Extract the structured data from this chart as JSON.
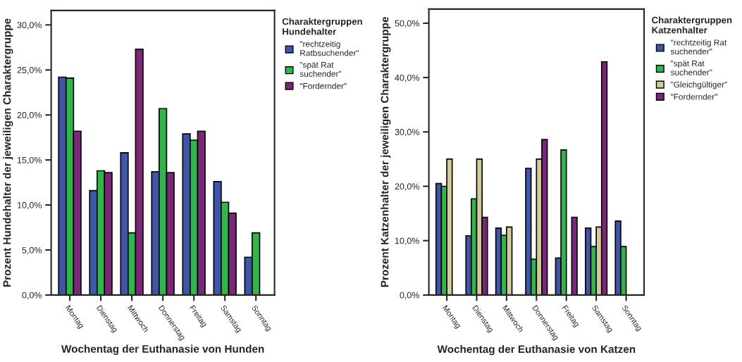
{
  "chart_data": [
    {
      "type": "bar",
      "xlabel": "Wochentag der Euthanasie von Hunden",
      "ylabel": "Prozent Hundehalter der jeweiligen Charaktergruppe",
      "legend_title": "Charaktergruppen\nHundehalter",
      "legend": "right",
      "grid": false,
      "categories": [
        "Montag",
        "Dienstag",
        "Mittwoch",
        "Donnerstag",
        "Freitag",
        "Samstag",
        "Sonntag"
      ],
      "ylim": [
        0,
        31.6
      ],
      "yticks": [
        {
          "value": 0,
          "label": "0,0%"
        },
        {
          "value": 5,
          "label": "5,0%"
        },
        {
          "value": 10,
          "label": "10,0%"
        },
        {
          "value": 15,
          "label": "15,0%"
        },
        {
          "value": 20,
          "label": "20,0%"
        },
        {
          "value": 25,
          "label": "25,0%"
        },
        {
          "value": 30,
          "label": "30,0%"
        }
      ],
      "series": [
        {
          "name": "\"rechtzeitig\nRatbsuchender\"",
          "color": "#3f56a8",
          "values": [
            24.2,
            11.6,
            15.8,
            13.7,
            17.9,
            12.6,
            4.2
          ]
        },
        {
          "name": "\"spät Rat\nsuchender\"",
          "color": "#2fb84a",
          "values": [
            24.1,
            13.8,
            6.9,
            20.7,
            17.2,
            10.3,
            6.9
          ]
        },
        {
          "name": "\"Fordernder\"",
          "color": "#7b2679",
          "values": [
            18.2,
            13.6,
            27.3,
            13.6,
            18.2,
            9.1,
            null
          ]
        }
      ]
    },
    {
      "type": "bar",
      "xlabel": "Wochentag der Euthanasie von Katzen",
      "ylabel": "Prozent Katzenhalter der jeweiligen Charaktergruppe",
      "legend_title": "Charaktergruppen\nKatzenhalter",
      "legend": "right",
      "grid": false,
      "categories": [
        "Montag",
        "Dienstag",
        "Mittwoch",
        "Donnerstag",
        "Freitag",
        "Samstag",
        "Sonntag"
      ],
      "ylim": [
        0,
        52.6
      ],
      "yticks": [
        {
          "value": 0,
          "label": "0,0%"
        },
        {
          "value": 10,
          "label": "10,0%"
        },
        {
          "value": 20,
          "label": "20,0%"
        },
        {
          "value": 30,
          "label": "30,0%"
        },
        {
          "value": 40,
          "label": "40,0%"
        },
        {
          "value": 50,
          "label": "50,0%"
        }
      ],
      "series": [
        {
          "name": "\"rechtzeitig Rat\nsuchender\"",
          "color": "#3f56a8",
          "values": [
            20.5,
            10.9,
            12.3,
            23.3,
            6.8,
            12.3,
            13.6
          ]
        },
        {
          "name": "\"spät Rat\nsuchender\"",
          "color": "#2fb84a",
          "values": [
            20.0,
            17.7,
            11.0,
            6.6,
            26.7,
            8.9,
            8.9
          ]
        },
        {
          "name": "\"Gleichgültiger\"",
          "color": "#d4cc96",
          "values": [
            25.0,
            25.0,
            12.5,
            25.0,
            null,
            12.5,
            null
          ]
        },
        {
          "name": "\"Fordernder\"",
          "color": "#7b2679",
          "values": [
            null,
            14.3,
            null,
            28.6,
            14.3,
            42.9,
            null
          ]
        }
      ]
    }
  ]
}
